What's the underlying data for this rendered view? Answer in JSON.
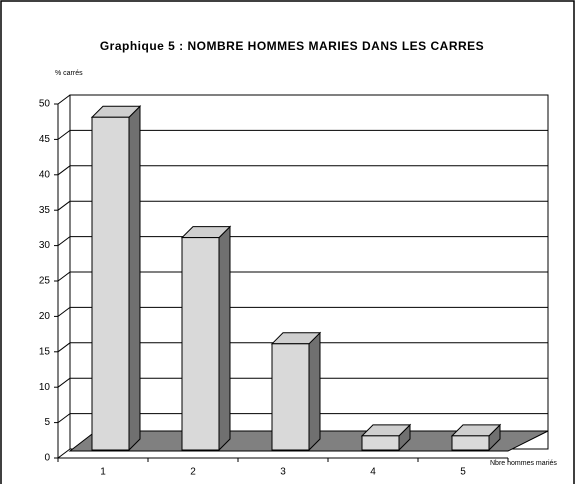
{
  "chart_data": {
    "type": "bar3d",
    "title": "Graphique 5 : NOMBRE HOMMES MARIES DANS LES CARRES",
    "y_label": "% carrés",
    "x_label": "Nbre hommes mariés",
    "categories": [
      "1",
      "2",
      "3",
      "4",
      "5"
    ],
    "values": [
      47,
      30,
      15,
      2,
      2
    ],
    "color": "#d9d9d9",
    "ylim": [
      0,
      50
    ],
    "yticks": [
      0,
      5,
      10,
      15,
      20,
      25,
      30,
      35,
      40,
      45,
      50
    ],
    "grid": true
  }
}
